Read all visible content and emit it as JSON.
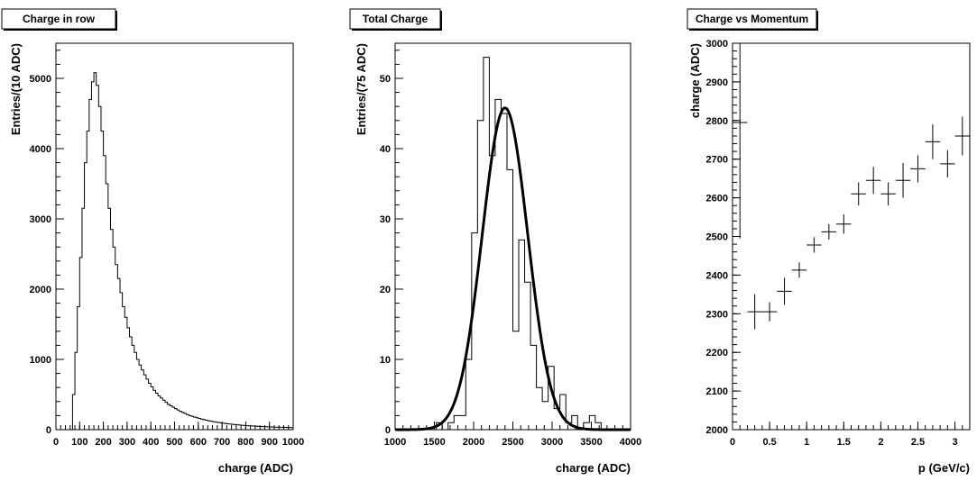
{
  "chart_data": [
    {
      "type": "histogram",
      "title": "Charge in row",
      "xlabel": "charge (ADC)",
      "ylabel": "Entries/(10 ADC)",
      "xlim": [
        0,
        1000
      ],
      "ylim": [
        0,
        5500
      ],
      "x_ticks": [
        0,
        100,
        200,
        300,
        400,
        500,
        600,
        700,
        800,
        900,
        1000
      ],
      "x_tick_labels": [
        "0",
        "100",
        "200",
        "300",
        "400",
        "500",
        "600",
        "700",
        "800",
        "900",
        "1000"
      ],
      "y_ticks": [
        0,
        1000,
        2000,
        3000,
        4000,
        5000
      ],
      "bin_width": 10,
      "x_start": 0,
      "values": [
        0,
        0,
        0,
        0,
        0,
        0,
        0,
        500,
        1100,
        1750,
        2450,
        3150,
        3800,
        4250,
        4700,
        4950,
        5080,
        4900,
        4600,
        4250,
        3900,
        3500,
        3150,
        2850,
        2600,
        2350,
        2150,
        1950,
        1750,
        1600,
        1450,
        1320,
        1200,
        1100,
        1000,
        920,
        850,
        780,
        720,
        660,
        610,
        560,
        520,
        480,
        450,
        420,
        390,
        360,
        340,
        320,
        300,
        280,
        260,
        245,
        230,
        215,
        200,
        190,
        180,
        170,
        160,
        150,
        142,
        134,
        126,
        120,
        114,
        108,
        102,
        97,
        92,
        88,
        84,
        80,
        76,
        72,
        69,
        66,
        63,
        60,
        57,
        55,
        53,
        51,
        49,
        47,
        45,
        43,
        41,
        40,
        38,
        37,
        36,
        35,
        34,
        33,
        32,
        31,
        30,
        29
      ]
    },
    {
      "type": "histogram",
      "title": "Total Charge",
      "xlabel": "charge (ADC)",
      "ylabel": "Entries/(75 ADC)",
      "xlim": [
        1000,
        4000
      ],
      "ylim": [
        0,
        55
      ],
      "x_ticks": [
        1000,
        1500,
        2000,
        2500,
        3000,
        3500,
        4000
      ],
      "y_ticks": [
        0,
        10,
        20,
        30,
        40,
        50
      ],
      "bin_width": 75,
      "x_start": 1000,
      "values": [
        0,
        0,
        0,
        0,
        0,
        0,
        0,
        1,
        0,
        1,
        2,
        2,
        10,
        28,
        44,
        53,
        39,
        47,
        45,
        37,
        14,
        27,
        21,
        12,
        6,
        4,
        9,
        3,
        5,
        1,
        2,
        0,
        1,
        2,
        1,
        0,
        0,
        0,
        0,
        0
      ],
      "fit": {
        "type": "gaussian",
        "mean": 2400,
        "sigma": 290,
        "amplitude": 45.8
      }
    },
    {
      "type": "scatter",
      "title": "Charge vs Momentum",
      "xlabel": "p (GeV/c)",
      "ylabel": "charge (ADC)",
      "xlim": [
        0,
        3.2
      ],
      "ylim": [
        2000,
        3000
      ],
      "x_ticks": [
        0,
        0.5,
        1,
        1.5,
        2,
        2.5,
        3
      ],
      "x_tick_labels": [
        "0",
        "0.5",
        "1",
        "1.5",
        "2",
        "2.5",
        "3"
      ],
      "y_ticks": [
        2000,
        2100,
        2200,
        2300,
        2400,
        2500,
        2600,
        2700,
        2800,
        2900,
        3000
      ],
      "points": [
        {
          "x": 0.1,
          "y": 2795,
          "xerr": 0.1,
          "yerr": 300
        },
        {
          "x": 0.3,
          "y": 2305,
          "xerr": 0.1,
          "yerr": 45
        },
        {
          "x": 0.5,
          "y": 2305,
          "xerr": 0.1,
          "yerr": 25
        },
        {
          "x": 0.7,
          "y": 2358,
          "xerr": 0.1,
          "yerr": 35
        },
        {
          "x": 0.9,
          "y": 2413,
          "xerr": 0.1,
          "yerr": 20
        },
        {
          "x": 1.1,
          "y": 2478,
          "xerr": 0.1,
          "yerr": 20
        },
        {
          "x": 1.3,
          "y": 2512,
          "xerr": 0.1,
          "yerr": 20
        },
        {
          "x": 1.5,
          "y": 2532,
          "xerr": 0.1,
          "yerr": 25
        },
        {
          "x": 1.7,
          "y": 2610,
          "xerr": 0.1,
          "yerr": 30
        },
        {
          "x": 1.9,
          "y": 2645,
          "xerr": 0.1,
          "yerr": 35
        },
        {
          "x": 2.1,
          "y": 2610,
          "xerr": 0.1,
          "yerr": 30
        },
        {
          "x": 2.3,
          "y": 2645,
          "xerr": 0.1,
          "yerr": 45
        },
        {
          "x": 2.5,
          "y": 2675,
          "xerr": 0.1,
          "yerr": 35
        },
        {
          "x": 2.7,
          "y": 2745,
          "xerr": 0.1,
          "yerr": 45
        },
        {
          "x": 2.9,
          "y": 2688,
          "xerr": 0.1,
          "yerr": 35
        },
        {
          "x": 3.1,
          "y": 2760,
          "xerr": 0.1,
          "yerr": 50
        }
      ]
    }
  ]
}
